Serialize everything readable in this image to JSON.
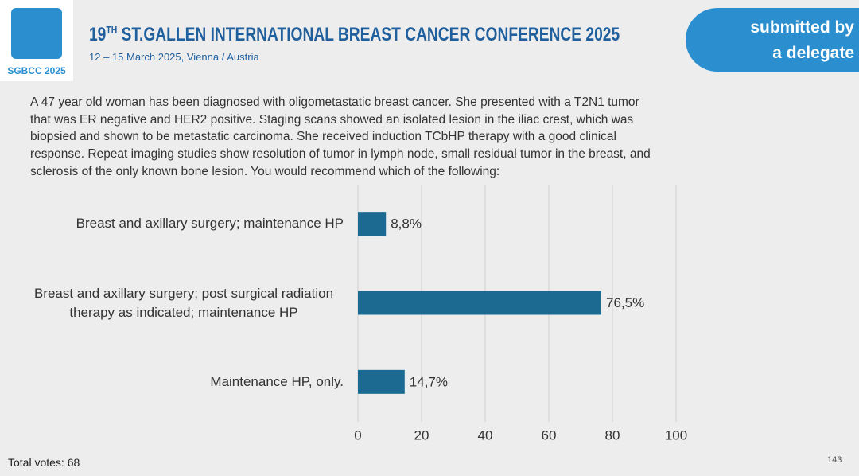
{
  "header": {
    "logo_text": "SGBCC 2025",
    "title_number": "19",
    "title_suffix": "TH",
    "title_rest": "ST.GALLEN INTERNATIONAL BREAST CANCER CONFERENCE 2025",
    "subtitle": "12 – 15 March 2025, Vienna / Austria",
    "badge_lines": [
      "submitted by",
      "a delegate"
    ]
  },
  "question_lines": [
    "A 47 year old woman has been diagnosed with oligometastatic breast cancer.  She presented with a T2N1 tumor",
    "that was ER negative and HER2 positive.  Staging scans showed an isolated lesion in the iliac crest, which was",
    "biopsied and shown to be metastatic carcinoma.  She received induction TCbHP therapy with a good clinical",
    "response.  Repeat imaging studies show resolution of tumor in lymph node, small residual tumor in the breast, and",
    "sclerosis of the only known bone lesion.  You would recommend which of the following:"
  ],
  "chart_data": {
    "type": "barh",
    "categories": [
      "Breast and axillary surgery; maintenance HP",
      "Breast and axillary surgery; post surgical radiation therapy as indicated; maintenance HP",
      "Maintenance HP, only."
    ],
    "values": [
      8.8,
      76.5,
      14.7
    ],
    "value_labels": [
      "8,8%",
      "76,5%",
      "14,7%"
    ],
    "color": "#1c6a91",
    "xlim": [
      0,
      100
    ],
    "xticks": [
      0,
      20,
      40,
      60,
      80,
      100
    ],
    "grid": true
  },
  "footer": {
    "total_votes": "Total votes: 68",
    "page_number": "143"
  }
}
